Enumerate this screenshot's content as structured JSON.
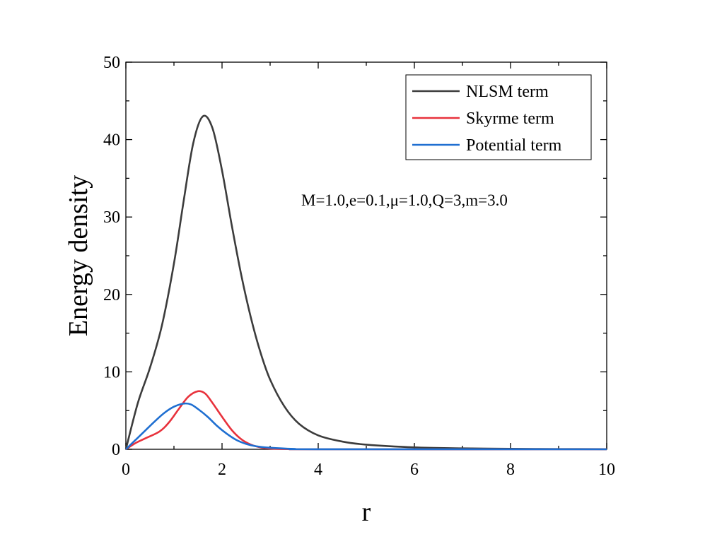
{
  "chart_data": {
    "type": "line",
    "xlabel": "r",
    "ylabel": "Energy density",
    "xlim": [
      0,
      10
    ],
    "ylim": [
      0,
      50
    ],
    "x_ticks": [
      "0",
      "2",
      "4",
      "6",
      "8",
      "10"
    ],
    "y_ticks": [
      "0",
      "10",
      "20",
      "30",
      "40",
      "50"
    ],
    "grid": false,
    "legend_position": "top-right",
    "annotation": "M=1.0,e=0.1,μ=1.0,Q=3,m=3.0",
    "series": [
      {
        "name": "NLSM term",
        "color": "#3c3c3c",
        "points": [
          [
            0,
            0
          ],
          [
            0.25,
            6
          ],
          [
            0.5,
            10.5
          ],
          [
            0.75,
            16
          ],
          [
            1.0,
            24
          ],
          [
            1.2,
            32
          ],
          [
            1.4,
            39.5
          ],
          [
            1.6,
            43
          ],
          [
            1.8,
            41.5
          ],
          [
            2.0,
            36
          ],
          [
            2.2,
            29
          ],
          [
            2.4,
            22.5
          ],
          [
            2.6,
            17
          ],
          [
            2.8,
            12.5
          ],
          [
            3.0,
            9
          ],
          [
            3.3,
            5.5
          ],
          [
            3.6,
            3.3
          ],
          [
            4.0,
            1.8
          ],
          [
            4.5,
            1.0
          ],
          [
            5.0,
            0.6
          ],
          [
            6.0,
            0.25
          ],
          [
            7.0,
            0.12
          ],
          [
            8.0,
            0.06
          ],
          [
            9.0,
            0.03
          ],
          [
            10.0,
            0.02
          ]
        ]
      },
      {
        "name": "Skyrme term",
        "color": "#e8323c",
        "points": [
          [
            0,
            0
          ],
          [
            0.2,
            0.8
          ],
          [
            0.4,
            1.4
          ],
          [
            0.7,
            2.3
          ],
          [
            0.9,
            3.5
          ],
          [
            1.1,
            5.2
          ],
          [
            1.3,
            6.8
          ],
          [
            1.5,
            7.5
          ],
          [
            1.65,
            7.2
          ],
          [
            1.8,
            6.0
          ],
          [
            2.0,
            4.2
          ],
          [
            2.2,
            2.5
          ],
          [
            2.4,
            1.3
          ],
          [
            2.6,
            0.6
          ],
          [
            2.8,
            0.25
          ],
          [
            3.0,
            0.1
          ],
          [
            3.5,
            0.02
          ],
          [
            4.0,
            0
          ],
          [
            10.0,
            0
          ]
        ]
      },
      {
        "name": "Potential term",
        "color": "#1f6fd1",
        "points": [
          [
            0,
            0
          ],
          [
            0.2,
            1.2
          ],
          [
            0.4,
            2.4
          ],
          [
            0.6,
            3.6
          ],
          [
            0.8,
            4.7
          ],
          [
            1.0,
            5.5
          ],
          [
            1.2,
            5.9
          ],
          [
            1.35,
            5.8
          ],
          [
            1.5,
            5.2
          ],
          [
            1.7,
            4.2
          ],
          [
            1.9,
            3.0
          ],
          [
            2.1,
            2.0
          ],
          [
            2.3,
            1.2
          ],
          [
            2.5,
            0.7
          ],
          [
            2.7,
            0.4
          ],
          [
            3.0,
            0.2
          ],
          [
            3.5,
            0.05
          ],
          [
            4.0,
            0.01
          ],
          [
            10.0,
            0
          ]
        ]
      }
    ]
  }
}
